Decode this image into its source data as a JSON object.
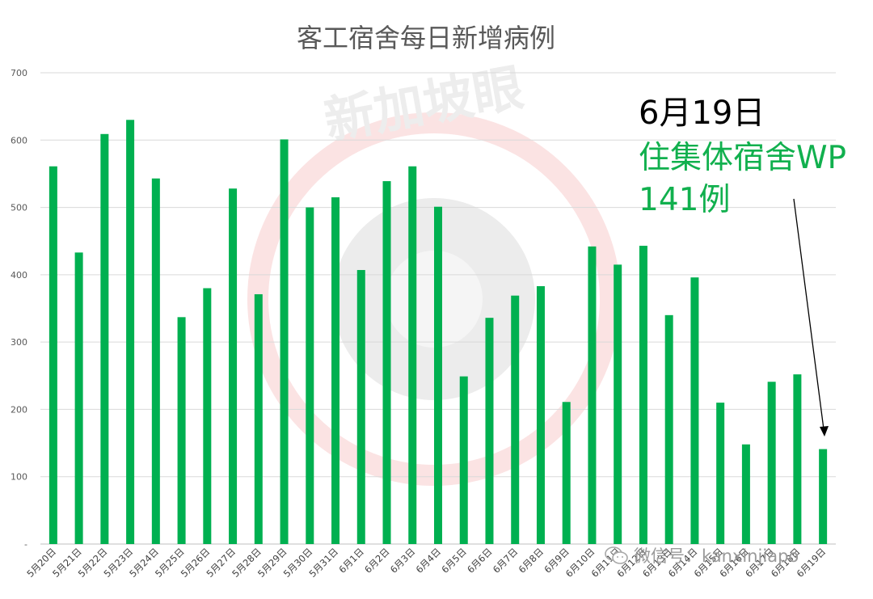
{
  "chart_data": {
    "type": "bar",
    "title": "客工宿舍每日新增病例",
    "categories": [
      "5月20日",
      "5月21日",
      "5月22日",
      "5月23日",
      "5月24日",
      "5月25日",
      "5月26日",
      "5月27日",
      "5月28日",
      "5月29日",
      "5月30日",
      "5月31日",
      "6月1日",
      "6月2日",
      "6月3日",
      "6月4日",
      "6月5日",
      "6月6日",
      "6月7日",
      "6月8日",
      "6月9日",
      "6月10日",
      "6月11日",
      "6月12日",
      "6月13日",
      "6月14日",
      "6月15日",
      "6月16日",
      "6月17日",
      "6月18日",
      "6月19日"
    ],
    "values": [
      561,
      433,
      609,
      630,
      543,
      337,
      380,
      528,
      371,
      601,
      500,
      515,
      407,
      539,
      561,
      501,
      249,
      336,
      369,
      383,
      211,
      442,
      415,
      443,
      340,
      396,
      210,
      148,
      241,
      252,
      141
    ],
    "ylim": [
      0,
      700
    ],
    "yticks": [
      "-",
      "100",
      "200",
      "300",
      "400",
      "500",
      "600",
      "700"
    ],
    "bar_color": "#00b050",
    "grid": true,
    "xlabel": "",
    "ylabel": ""
  },
  "annotation": {
    "date": "6月19日",
    "line1": "住集体宿舍WP",
    "line2": "141例",
    "date_color": "#000000",
    "text_color": "#11b04e"
  },
  "watermark": {
    "logo_text": "新加坡眼",
    "wechat_label": "微信号：kanxinjiapo"
  }
}
